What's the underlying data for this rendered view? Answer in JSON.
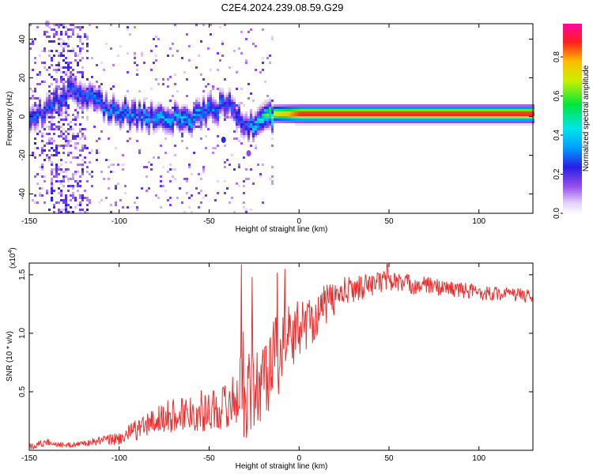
{
  "page": {
    "title": "C2E4.2024.239.08.59.G29"
  },
  "chart_data": [
    {
      "type": "heatmap",
      "xlabel": "Height of straight line (km)",
      "ylabel": "Frequency (Hz)",
      "xlim": [
        -150,
        130
      ],
      "ylim": [
        -50,
        48
      ],
      "x_ticks": [
        -150,
        -100,
        -50,
        0,
        50,
        100
      ],
      "x_tick_labels": [
        "-150",
        "-100",
        "-50",
        "0",
        "50",
        "100"
      ],
      "y_ticks": [
        -40,
        -20,
        0,
        20,
        40
      ],
      "y_tick_labels": [
        "-40",
        "-20",
        "0",
        "20",
        "40"
      ],
      "colorbar": {
        "label": "Normalized spectral amplitude",
        "range": [
          0,
          0.97
        ],
        "ticks": [
          0.0,
          0.2,
          0.4,
          0.6,
          0.8
        ],
        "tick_labels": [
          "0.0",
          "0.2",
          "0.4",
          "0.6",
          "0.8"
        ],
        "colormap": "rainbow (white-purple-blue-cyan-green-yellow-red-magenta)"
      },
      "ridge": {
        "description": "Dominant spectral line near ~2 Hz, noisy at low heights, strong and steady above ~-15 km",
        "points": [
          {
            "x": -145,
            "freq": 2,
            "amp": 0.3
          },
          {
            "x": -127,
            "freq": 14,
            "amp": 0.3
          },
          {
            "x": -100,
            "freq": 2,
            "amp": 0.35
          },
          {
            "x": -60,
            "freq": 0,
            "amp": 0.4
          },
          {
            "x": -40,
            "freq": 7,
            "amp": 0.3
          },
          {
            "x": -30,
            "freq": -5,
            "amp": 0.3
          },
          {
            "x": -15,
            "freq": 2,
            "amp": 0.7
          },
          {
            "x": 0,
            "freq": 2,
            "amp": 0.9
          },
          {
            "x": 50,
            "freq": 2,
            "amp": 0.9
          },
          {
            "x": 130,
            "freq": 2,
            "amp": 0.9
          }
        ]
      }
    },
    {
      "type": "line",
      "xlabel": "Height of straight line (km)",
      "ylabel": "SNR (10 * v/v)",
      "y_multiplier": "(x10",
      "y_multiplier_exp": "4",
      "y_multiplier_close": ")",
      "xlim": [
        -150,
        130
      ],
      "ylim": [
        0,
        16000
      ],
      "x_ticks": [
        -150,
        -100,
        -50,
        0,
        50,
        100
      ],
      "x_tick_labels": [
        "-150",
        "-100",
        "-50",
        "0",
        "50",
        "100"
      ],
      "y_ticks": [
        5000,
        10000,
        15000
      ],
      "y_tick_labels": [
        "0.5",
        "1.0",
        "1.5"
      ],
      "series": [
        {
          "color": "#e83030",
          "x": [
            -150,
            -140,
            -130,
            -120,
            -110,
            -100,
            -90,
            -80,
            -70,
            -60,
            -50,
            -40,
            -35,
            -30,
            -25,
            -20,
            -15,
            -10,
            -5,
            0,
            5,
            10,
            15,
            20,
            25,
            30,
            40,
            50,
            60,
            70,
            80,
            90,
            100,
            110,
            120,
            130
          ],
          "y": [
            300,
            700,
            400,
            600,
            800,
            1000,
            1800,
            2500,
            3000,
            3300,
            3400,
            3800,
            4500,
            6000,
            4500,
            6500,
            7500,
            8500,
            9500,
            10500,
            11000,
            11500,
            12500,
            13000,
            13500,
            13800,
            14200,
            14500,
            14200,
            14100,
            13900,
            13700,
            13500,
            13400,
            13300,
            13200
          ],
          "noise_amplitude": [
            300,
            300,
            200,
            250,
            400,
            600,
            900,
            1300,
            1500,
            1700,
            1800,
            2000,
            2500,
            5000,
            3500,
            4000,
            4000,
            3500,
            3000,
            2500,
            2200,
            2000,
            1800,
            1500,
            1300,
            1200,
            1000,
            900,
            900,
            800,
            700,
            700,
            700,
            600,
            600,
            600
          ],
          "spikes": [
            {
              "x": -32,
              "y": 15900
            },
            {
              "x": -26,
              "y": 14800
            },
            {
              "x": -12,
              "y": 15200
            },
            {
              "x": -8,
              "y": 15500
            },
            {
              "x": 49,
              "y": 15900
            }
          ]
        }
      ]
    }
  ]
}
